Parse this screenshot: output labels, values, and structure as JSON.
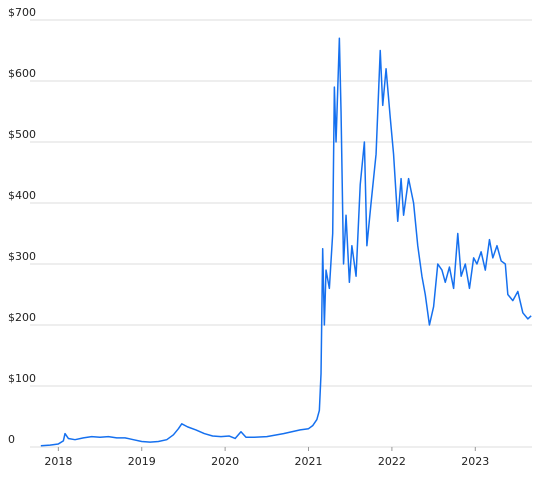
{
  "chart_data": {
    "type": "line",
    "x": [
      2017.79,
      2017.9,
      2018.0,
      2018.06,
      2018.08,
      2018.12,
      2018.2,
      2018.3,
      2018.4,
      2018.5,
      2018.6,
      2018.7,
      2018.8,
      2018.9,
      2019.0,
      2019.1,
      2019.2,
      2019.3,
      2019.38,
      2019.44,
      2019.48,
      2019.55,
      2019.65,
      2019.75,
      2019.85,
      2019.95,
      2020.05,
      2020.12,
      2020.19,
      2020.25,
      2020.35,
      2020.5,
      2020.7,
      2020.9,
      2021.0,
      2021.05,
      2021.1,
      2021.13,
      2021.15,
      2021.17,
      2021.19,
      2021.21,
      2021.25,
      2021.29,
      2021.31,
      2021.33,
      2021.37,
      2021.39,
      2021.42,
      2021.45,
      2021.49,
      2021.52,
      2021.57,
      2021.62,
      2021.67,
      2021.7,
      2021.75,
      2021.81,
      2021.86,
      2021.89,
      2021.93,
      2021.98,
      2022.02,
      2022.07,
      2022.11,
      2022.14,
      2022.2,
      2022.26,
      2022.31,
      2022.36,
      2022.4,
      2022.45,
      2022.5,
      2022.55,
      2022.6,
      2022.64,
      2022.69,
      2022.74,
      2022.79,
      2022.83,
      2022.88,
      2022.93,
      2022.98,
      2023.02,
      2023.07,
      2023.12,
      2023.17,
      2023.21,
      2023.26,
      2023.31,
      2023.36,
      2023.39,
      2023.45,
      2023.51,
      2023.57,
      2023.63,
      2023.67
    ],
    "series": [
      {
        "color": "#1570ef",
        "values": [
          2,
          3,
          5,
          10,
          22,
          14,
          12,
          15,
          17,
          16,
          17,
          15,
          15,
          12,
          9,
          8,
          9,
          12,
          20,
          30,
          38,
          33,
          28,
          22,
          18,
          17,
          18,
          14,
          25,
          16,
          16,
          17,
          22,
          28,
          30,
          35,
          45,
          60,
          120,
          325,
          200,
          290,
          260,
          350,
          590,
          500,
          670,
          550,
          300,
          380,
          270,
          330,
          280,
          430,
          500,
          330,
          400,
          480,
          650,
          560,
          620,
          540,
          480,
          370,
          440,
          380,
          440,
          400,
          330,
          280,
          250,
          200,
          230,
          300,
          290,
          270,
          295,
          260,
          350,
          280,
          300,
          260,
          310,
          300,
          320,
          290,
          340,
          310,
          330,
          305,
          300,
          250,
          240,
          255,
          220,
          210,
          215
        ]
      }
    ],
    "xlim": [
      2017.78,
      2023.68
    ],
    "xticks": [
      2018,
      2019,
      2020,
      2021,
      2022,
      2023
    ],
    "ylim": [
      0,
      700
    ],
    "yticks": [
      0,
      {
        "value": 100,
        "label": "$100"
      },
      {
        "value": 200,
        "label": "$200"
      },
      {
        "value": 300,
        "label": "$300"
      },
      {
        "value": 400,
        "label": "$400"
      },
      {
        "value": 500,
        "label": "$500"
      },
      {
        "value": 600,
        "label": "$600"
      },
      {
        "value": 700,
        "label": "$700"
      }
    ],
    "grid": true
  }
}
